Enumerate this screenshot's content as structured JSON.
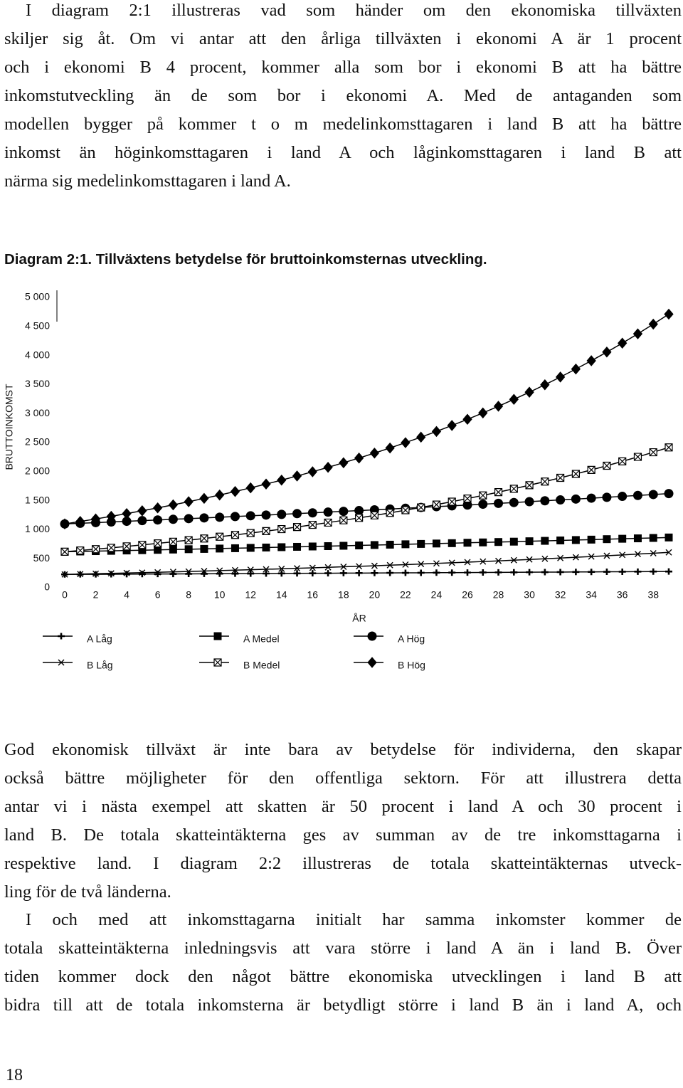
{
  "paragraphs": [
    {
      "lines": [
        "I diagram 2:1 illustreras vad som händer om den ekonomiska tillväxten",
        "skiljer sig åt. Om vi antar att den årliga tillväxten i ekonomi A är 1 procent",
        "och i ekonomi B 4 procent, kommer alla som bor i ekonomi B att ha bättre",
        "inkomstutveckling än de som bor i ekonomi A. Med de antaganden som",
        "modellen bygger på kommer t o m medelinkomsttagaren i land B att ha bättre",
        "inkomst än höginkomsttagaren i land A och låginkomsttagaren i land B att",
        "närma sig medelinkomsttagaren i land A."
      ]
    },
    {
      "lines": [
        "God ekonomisk tillväxt är inte bara av betydelse för individerna, den skapar",
        "också bättre möjligheter för den offentliga sektorn. För att illustrera detta",
        "antar vi i nästa exempel att skatten är 50 procent i land A och 30 procent i",
        "land B. De totala skatteintäkterna ges av summan av de tre inkomsttagarna i",
        "respektive land. I diagram 2:2 illustreras de totala skatteintäkternas utveck-",
        "ling för de två länderna."
      ]
    },
    {
      "lines": [
        "I och med att inkomsttagarna initialt har samma inkomster kommer de",
        "totala skatteintäkterna inledningsvis att vara större i land A än i land B. Över",
        "tiden kommer dock den något bättre ekonomiska utvecklingen i land B att",
        "bidra till att de totala inkomsterna är betydligt större i land B än i land A, och"
      ]
    }
  ],
  "chart_data": {
    "type": "line",
    "title": "Diagram 2:1. Tillväxtens betydelse för bruttoinkomsternas utveckling.",
    "y_label": "BRUTTOINKOMST",
    "x_label": "ÅR",
    "x": [
      0,
      1,
      2,
      3,
      4,
      5,
      6,
      7,
      8,
      9,
      10,
      11,
      12,
      13,
      14,
      15,
      16,
      17,
      18,
      19,
      20,
      21,
      22,
      23,
      24,
      25,
      26,
      27,
      28,
      29,
      30,
      31,
      32,
      33,
      34,
      35,
      36,
      37,
      38,
      39
    ],
    "xlim": [
      0,
      39
    ],
    "xticks": [
      0,
      2,
      4,
      6,
      8,
      10,
      12,
      14,
      16,
      18,
      20,
      22,
      24,
      26,
      28,
      30,
      32,
      34,
      36,
      38
    ],
    "ylim": [
      0,
      5000
    ],
    "yticks": [
      0,
      500,
      {
        "value": 1000,
        "label": "1 000"
      },
      {
        "value": 1500,
        "label": "1 500"
      },
      {
        "value": 2000,
        "label": "2 000"
      },
      {
        "value": 2500,
        "label": "2 500"
      },
      {
        "value": 3000,
        "label": "3 000"
      },
      {
        "value": 3500,
        "label": "3 500"
      },
      {
        "value": 4000,
        "label": "4 000"
      },
      {
        "value": 4500,
        "label": "4 500"
      },
      {
        "value": 5000,
        "label": "5 000"
      }
    ],
    "grid": false,
    "series": [
      {
        "name": "A Låg",
        "color": "#000000",
        "marker": "plus",
        "values": [
          230,
          231,
          232,
          233,
          235,
          236,
          237,
          238,
          239,
          240,
          242,
          243,
          244,
          245,
          247,
          248,
          249,
          250,
          252,
          253,
          254,
          256,
          257,
          258,
          260,
          261,
          262,
          264,
          265,
          266,
          268,
          269,
          270,
          272,
          273,
          275,
          276,
          278,
          279,
          280
        ]
      },
      {
        "name": "A Medel",
        "color": "#000000",
        "marker": "square",
        "values": [
          620,
          625,
          631,
          636,
          642,
          647,
          653,
          658,
          664,
          669,
          675,
          681,
          687,
          693,
          699,
          705,
          711,
          717,
          723,
          729,
          736,
          742,
          749,
          755,
          762,
          768,
          775,
          781,
          788,
          794,
          801,
          808,
          815,
          822,
          829,
          837,
          844,
          851,
          858,
          866
        ]
      },
      {
        "name": "A Hög",
        "color": "#000000",
        "marker": "circle",
        "values": [
          1100,
          1111,
          1122,
          1133,
          1145,
          1156,
          1168,
          1179,
          1191,
          1203,
          1215,
          1227,
          1240,
          1252,
          1264,
          1277,
          1290,
          1303,
          1316,
          1329,
          1342,
          1356,
          1369,
          1383,
          1397,
          1411,
          1425,
          1439,
          1454,
          1468,
          1483,
          1498,
          1513,
          1528,
          1543,
          1558,
          1574,
          1590,
          1606,
          1622
        ]
      },
      {
        "name": "B Låg",
        "color": "#000000",
        "marker": "x",
        "values": [
          230,
          236,
          242,
          248,
          254,
          261,
          267,
          274,
          281,
          288,
          295,
          303,
          311,
          318,
          326,
          335,
          343,
          352,
          361,
          370,
          379,
          389,
          399,
          409,
          419,
          430,
          441,
          452,
          463,
          475,
          487,
          499,
          512,
          525,
          538,
          552,
          566,
          580,
          595,
          610
        ]
      },
      {
        "name": "B Medel",
        "color": "#000000",
        "marker": "boxed-x",
        "values": [
          620,
          642,
          665,
          688,
          713,
          738,
          764,
          792,
          820,
          849,
          879,
          910,
          942,
          976,
          1010,
          1046,
          1084,
          1122,
          1162,
          1203,
          1246,
          1290,
          1336,
          1383,
          1432,
          1483,
          1536,
          1590,
          1647,
          1705,
          1766,
          1829,
          1893,
          1961,
          2030,
          2102,
          2177,
          2254,
          2334,
          2417
        ]
      },
      {
        "name": "B Hög",
        "color": "#000000",
        "marker": "diamond",
        "values": [
          1100,
          1142,
          1185,
          1230,
          1277,
          1326,
          1376,
          1428,
          1482,
          1539,
          1597,
          1658,
          1721,
          1786,
          1854,
          1925,
          1998,
          2074,
          2153,
          2234,
          2319,
          2407,
          2499,
          2594,
          2692,
          2795,
          2901,
          3011,
          3126,
          3245,
          3368,
          3496,
          3629,
          3767,
          3910,
          4059,
          4213,
          4373,
          4540,
          4712
        ]
      }
    ]
  },
  "page_number": "18"
}
